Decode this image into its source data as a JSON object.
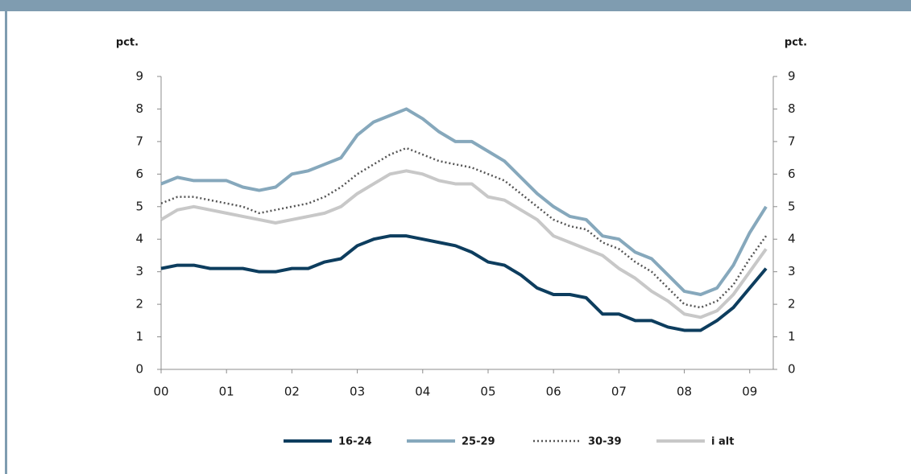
{
  "chart_data": {
    "type": "line",
    "y_label": "pct.",
    "y2_label": "pct.",
    "x": [
      2000,
      2000.25,
      2000.5,
      2000.75,
      2001,
      2001.25,
      2001.5,
      2001.75,
      2002,
      2002.25,
      2002.5,
      2002.75,
      2003,
      2003.25,
      2003.5,
      2003.75,
      2004,
      2004.25,
      2004.5,
      2004.75,
      2005,
      2005.25,
      2005.5,
      2005.75,
      2006,
      2006.25,
      2006.5,
      2006.75,
      2007,
      2007.25,
      2007.5,
      2007.75,
      2008,
      2008.25,
      2008.5,
      2008.75,
      2009,
      2009.25
    ],
    "series": [
      {
        "name": "16-24",
        "color": "#0d3d5e",
        "dash": "solid",
        "values": [
          3.1,
          3.2,
          3.2,
          3.1,
          3.1,
          3.1,
          3.0,
          3.0,
          3.1,
          3.1,
          3.3,
          3.4,
          3.8,
          4.0,
          4.1,
          4.1,
          4.0,
          3.9,
          3.8,
          3.6,
          3.3,
          3.2,
          2.9,
          2.5,
          2.3,
          2.3,
          2.2,
          1.7,
          1.7,
          1.5,
          1.5,
          1.3,
          1.2,
          1.2,
          1.5,
          1.9,
          2.5,
          3.1
        ]
      },
      {
        "name": "25-29",
        "color": "#86a8bc",
        "dash": "solid",
        "values": [
          5.7,
          5.9,
          5.8,
          5.8,
          5.8,
          5.6,
          5.5,
          5.6,
          6.0,
          6.1,
          6.3,
          6.5,
          7.2,
          7.6,
          7.8,
          8.0,
          7.7,
          7.3,
          7.0,
          7.0,
          6.7,
          6.4,
          5.9,
          5.4,
          5.0,
          4.7,
          4.6,
          4.1,
          4.0,
          3.6,
          3.4,
          2.9,
          2.4,
          2.3,
          2.5,
          3.2,
          4.2,
          5.0
        ]
      },
      {
        "name": "30-39",
        "color": "#555555",
        "dash": "dotted",
        "values": [
          5.1,
          5.3,
          5.3,
          5.2,
          5.1,
          5.0,
          4.8,
          4.9,
          5.0,
          5.1,
          5.3,
          5.6,
          6.0,
          6.3,
          6.6,
          6.8,
          6.6,
          6.4,
          6.3,
          6.2,
          6.0,
          5.8,
          5.4,
          5.0,
          4.6,
          4.4,
          4.3,
          3.9,
          3.7,
          3.3,
          3.0,
          2.5,
          2.0,
          1.9,
          2.1,
          2.6,
          3.4,
          4.1
        ]
      },
      {
        "name": "i alt",
        "color": "#c8c8c8",
        "dash": "solid",
        "values": [
          4.6,
          4.9,
          5.0,
          4.9,
          4.8,
          4.7,
          4.6,
          4.5,
          4.6,
          4.7,
          4.8,
          5.0,
          5.4,
          5.7,
          6.0,
          6.1,
          6.0,
          5.8,
          5.7,
          5.7,
          5.3,
          5.2,
          4.9,
          4.6,
          4.1,
          3.9,
          3.7,
          3.5,
          3.1,
          2.8,
          2.4,
          2.1,
          1.7,
          1.6,
          1.8,
          2.3,
          3.0,
          3.7
        ]
      }
    ],
    "xlim": [
      2000,
      2009.36
    ],
    "xticks": [
      {
        "value": 2000,
        "label": "00"
      },
      {
        "value": 2001,
        "label": "01"
      },
      {
        "value": 2002,
        "label": "02"
      },
      {
        "value": 2003,
        "label": "03"
      },
      {
        "value": 2004,
        "label": "04"
      },
      {
        "value": 2005,
        "label": "05"
      },
      {
        "value": 2006,
        "label": "06"
      },
      {
        "value": 2007,
        "label": "07"
      },
      {
        "value": 2008,
        "label": "08"
      },
      {
        "value": 2009,
        "label": "09"
      }
    ],
    "ylim": [
      0,
      9
    ],
    "yticks": [
      0,
      1,
      2,
      3,
      4,
      5,
      6,
      7,
      8,
      9
    ],
    "y2lim": [
      0,
      9
    ],
    "y2ticks": [
      0,
      1,
      2,
      3,
      4,
      5,
      6,
      7,
      8,
      9
    ],
    "grid": false,
    "legend": "bottom"
  }
}
